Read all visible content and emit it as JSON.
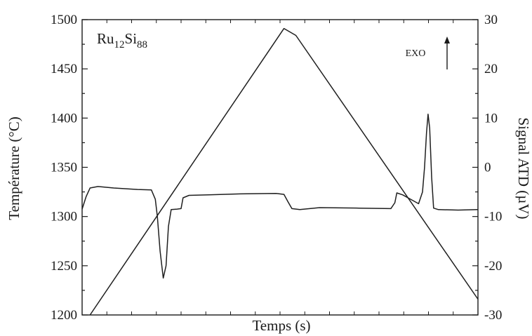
{
  "chart_data": {
    "type": "line",
    "title": "",
    "xlabel": "Temps (s)",
    "ylabel": "Température (°C)",
    "y2label": "Signal ATD (µV)",
    "grid": false,
    "annotation": {
      "base": "Ru",
      "sub1": "12",
      "mid": "Si",
      "sub2": "88"
    },
    "exo_label": "EXO",
    "x_ticks": 16,
    "ylim": [
      1200,
      1500
    ],
    "yticks": [
      "1200",
      "1250",
      "1300",
      "1350",
      "1400",
      "1450",
      "1500"
    ],
    "y2lim": [
      -30,
      30
    ],
    "y2ticks": [
      "-30",
      "-20",
      "-10",
      "0",
      "10",
      "20",
      "30"
    ],
    "xlim": [
      0,
      1
    ],
    "series": [
      {
        "axis": "left",
        "points": [
          [
            0.02,
            1200
          ],
          [
            0.51,
            1491
          ],
          [
            0.54,
            1484
          ],
          [
            1.0,
            1216
          ]
        ]
      },
      {
        "axis": "right",
        "points": [
          [
            0.0,
            -8.5
          ],
          [
            0.01,
            -6
          ],
          [
            0.02,
            -4.2
          ],
          [
            0.04,
            -3.9
          ],
          [
            0.08,
            -4.2
          ],
          [
            0.14,
            -4.5
          ],
          [
            0.175,
            -4.6
          ],
          [
            0.185,
            -6.5
          ],
          [
            0.19,
            -10
          ],
          [
            0.197,
            -17
          ],
          [
            0.205,
            -22.5
          ],
          [
            0.212,
            -20
          ],
          [
            0.218,
            -12
          ],
          [
            0.225,
            -8.6
          ],
          [
            0.24,
            -8.5
          ],
          [
            0.25,
            -8.4
          ],
          [
            0.255,
            -6.2
          ],
          [
            0.27,
            -5.7
          ],
          [
            0.32,
            -5.6
          ],
          [
            0.4,
            -5.4
          ],
          [
            0.49,
            -5.3
          ],
          [
            0.51,
            -5.5
          ],
          [
            0.52,
            -7
          ],
          [
            0.53,
            -8.4
          ],
          [
            0.55,
            -8.6
          ],
          [
            0.6,
            -8.2
          ],
          [
            0.7,
            -8.3
          ],
          [
            0.78,
            -8.4
          ],
          [
            0.79,
            -7.2
          ],
          [
            0.795,
            -5.2
          ],
          [
            0.81,
            -5.6
          ],
          [
            0.83,
            -6.5
          ],
          [
            0.85,
            -7.4
          ],
          [
            0.86,
            -5
          ],
          [
            0.865,
            0
          ],
          [
            0.87,
            7
          ],
          [
            0.874,
            10.8
          ],
          [
            0.878,
            8
          ],
          [
            0.883,
            -2
          ],
          [
            0.888,
            -8.3
          ],
          [
            0.9,
            -8.6
          ],
          [
            0.95,
            -8.7
          ],
          [
            1.0,
            -8.6
          ]
        ]
      }
    ]
  }
}
